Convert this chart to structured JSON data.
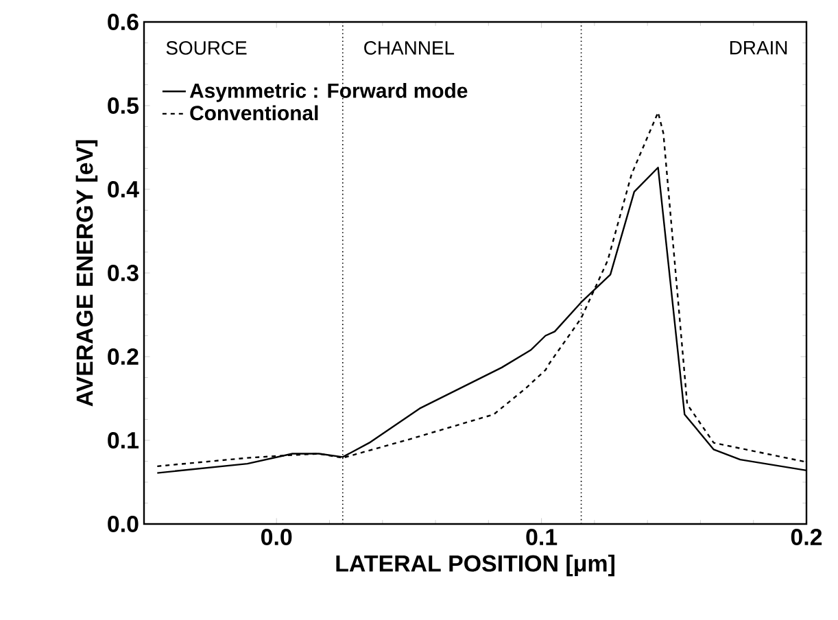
{
  "chart_data": {
    "type": "line",
    "xlabel": "LATERAL POSITION [μm]",
    "ylabel": "AVERAGE ENERGY [eV]",
    "xlim": [
      -0.05,
      0.2
    ],
    "ylim": [
      0,
      0.6
    ],
    "xticks": [
      {
        "value": 0,
        "label": "0.0"
      },
      0.1,
      0.2
    ],
    "yticks": [
      {
        "value": 0,
        "label": "0.0"
      },
      0.1,
      0.2,
      0.3,
      0.4,
      0.5,
      0.6
    ],
    "legend": "top left",
    "grid": false,
    "series": [
      {
        "name": "Asymmetric : Forward mode",
        "color": "#000000",
        "line_style": "solid",
        "x": [
          -0.045,
          -0.011,
          0.006,
          0.016,
          0.025,
          0.035,
          0.054,
          0.085,
          0.096,
          0.1015,
          0.105,
          0.115,
          0.126,
          0.135,
          0.144,
          0.154,
          0.165,
          0.175,
          0.2
        ],
        "values": [
          0.061,
          0.072,
          0.084,
          0.084,
          0.08,
          0.097,
          0.138,
          0.187,
          0.208,
          0.225,
          0.23,
          0.265,
          0.298,
          0.397,
          0.426,
          0.131,
          0.089,
          0.077,
          0.064
        ]
      },
      {
        "name": "Conventional",
        "color": "#000000",
        "line_style": "dashed",
        "x": [
          -0.045,
          -0.011,
          0.004,
          0.016,
          0.025,
          0.051,
          0.082,
          0.094,
          0.1015,
          0.103,
          0.115,
          0.125,
          0.134,
          0.144,
          0.146,
          0.155,
          0.165,
          0.2
        ],
        "values": [
          0.069,
          0.079,
          0.082,
          0.084,
          0.079,
          0.102,
          0.131,
          0.162,
          0.184,
          0.192,
          0.246,
          0.315,
          0.418,
          0.492,
          0.467,
          0.143,
          0.097,
          0.074
        ]
      }
    ],
    "ref_lines": [
      {
        "axis": "x",
        "value": 0.025,
        "color": "#000000",
        "line_style": "dotted"
      },
      {
        "axis": "x",
        "value": 0.115,
        "color": "#000000",
        "line_style": "dotted"
      }
    ],
    "annotations": [
      "SOURCE",
      "CHANNEL",
      "DRAIN"
    ]
  }
}
